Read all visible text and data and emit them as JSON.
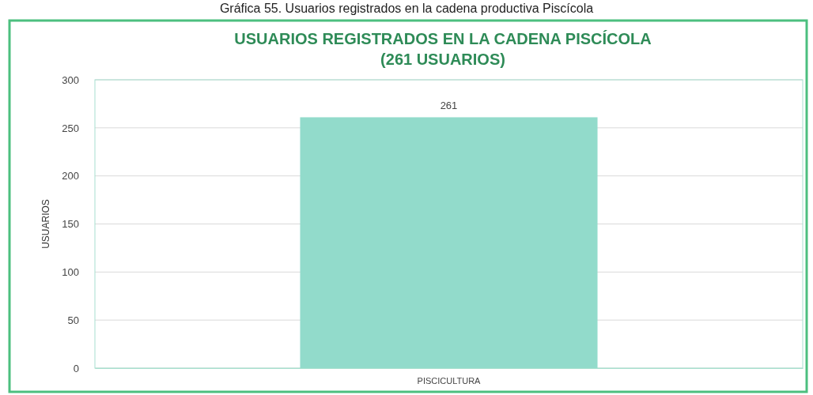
{
  "chart_data": {
    "type": "bar",
    "title": "USUARIOS REGISTRADOS EN LA CADENA PISCÍCOLA\n(261 USUARIOS)",
    "ylabel": "USUARIOS",
    "annotations": [
      "Gráfica 55. Usuarios registrados en la cadena productiva Piscícola"
    ],
    "categories": [
      "PISCICULTURA"
    ],
    "values": [
      261
    ],
    "color": "#92dbcb",
    "ylim": [
      0,
      300
    ],
    "yticks": [
      0,
      50,
      100,
      150,
      200,
      250,
      300
    ],
    "grid": "y",
    "data_labels": true
  }
}
